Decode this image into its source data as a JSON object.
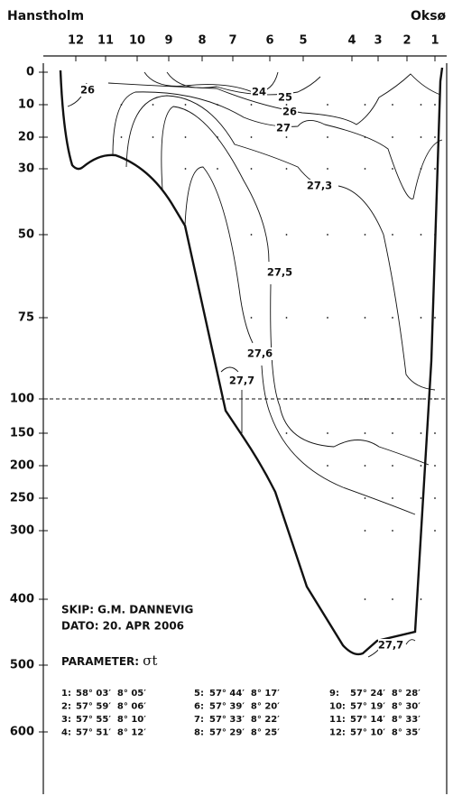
{
  "header": {
    "left": "Hanstholm",
    "right": "Oksø"
  },
  "stations": [
    "12",
    "11",
    "10",
    "9",
    "8",
    "7",
    "6",
    "5",
    "4",
    "3",
    "2",
    "1"
  ],
  "depths": [
    "0",
    "10",
    "20",
    "30",
    "50",
    "75",
    "100",
    "150",
    "200",
    "250",
    "300",
    "400",
    "500",
    "600"
  ],
  "contour_labels": [
    "26",
    "24",
    "25",
    "26",
    "27",
    "27,3",
    "27,5",
    "27,6",
    "27,7",
    "27,7"
  ],
  "info": {
    "ship": "SKIP: G.M. DANNEVIG",
    "date": "DATO: 20. APR 2006",
    "parameter": "PARAMETER:",
    "symbol": "σt"
  },
  "coordinates": [
    {
      "id": "1:",
      "pos": "58° 03′  8° 05′"
    },
    {
      "id": "5:",
      "pos": "57° 44′  8° 17′"
    },
    {
      "id": "9:",
      "pos": "57° 24′  8° 28′"
    },
    {
      "id": "2:",
      "pos": "57° 59′  8° 06′"
    },
    {
      "id": "6:",
      "pos": "57° 39′  8° 20′"
    },
    {
      "id": "10:",
      "pos": "57° 19′  8° 30′"
    },
    {
      "id": "3:",
      "pos": "57° 55′  8° 10′"
    },
    {
      "id": "7:",
      "pos": "57° 33′  8° 22′"
    },
    {
      "id": "11:",
      "pos": "57° 14′  8° 33′"
    },
    {
      "id": "4:",
      "pos": "57° 51′  8° 12′"
    },
    {
      "id": "8:",
      "pos": "57° 29′  8° 25′"
    },
    {
      "id": "12:",
      "pos": "57° 10′  8° 35′"
    }
  ]
}
